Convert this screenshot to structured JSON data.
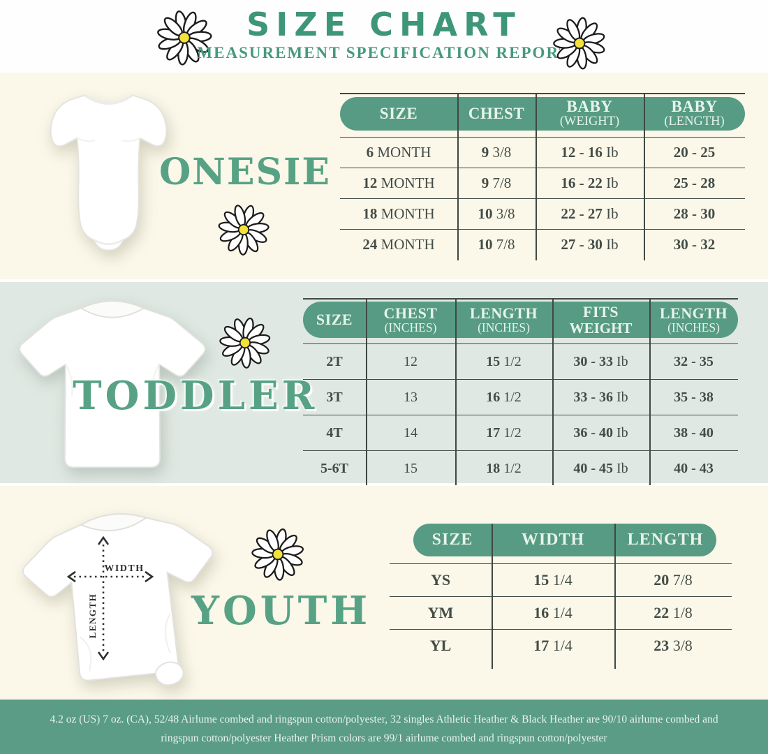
{
  "page": {
    "title": "SIZE CHART",
    "subtitle": "MEASUREMENT SPECIFICATION REPORT",
    "footer": "4.2 oz (US) 7 oz. (CA), 52/48 Airlume combed and ringspun cotton/polyester, 32 singles Athletic Heather & Black Heather are 90/10 airlume combed and ringspun cotton/polyester Heather Prism colors are 99/1 airlume combed and ringspun cotton/polyester"
  },
  "colors": {
    "band_green": "#579b84",
    "hero_title_green": "#3e9679",
    "section_title_green": "#57a285",
    "footer_green": "#5a9c85",
    "text_dark": "#434d47",
    "cream_bg": "#fbf7e9",
    "mint_bg": "#dfe8e2",
    "header_text": "#e7f4ea",
    "daisy_center": "#f2e23a"
  },
  "sections": {
    "onesie": {
      "title": "ONESIE"
    },
    "toddler": {
      "title": "TODDLER"
    },
    "youth": {
      "title": "YOUTH"
    }
  },
  "measure": {
    "width": "WIDTH",
    "length": "LENGTH"
  },
  "tables": {
    "onesie": {
      "headers": [
        {
          "l1": "SIZE"
        },
        {
          "l1": "CHEST"
        },
        {
          "l1": "BABY",
          "l2": "(WEIGHT)"
        },
        {
          "l1": "BABY",
          "l2": "(LENGTH)"
        }
      ],
      "rows": [
        [
          {
            "s": "6",
            "n": "MONTH"
          },
          {
            "s": "9",
            "n": "3/8"
          },
          {
            "s": "12 - 16",
            "n": "Ib"
          },
          {
            "s": "20 - 25"
          }
        ],
        [
          {
            "s": "12",
            "n": "MONTH"
          },
          {
            "s": "9",
            "n": "7/8"
          },
          {
            "s": "16 - 22",
            "n": "Ib"
          },
          {
            "s": "25 - 28"
          }
        ],
        [
          {
            "s": "18",
            "n": "MONTH"
          },
          {
            "s": "10",
            "n": "3/8"
          },
          {
            "s": "22 - 27",
            "n": "Ib"
          },
          {
            "s": "28 - 30"
          }
        ],
        [
          {
            "s": "24",
            "n": "MONTH"
          },
          {
            "s": "10",
            "n": "7/8"
          },
          {
            "s": "27 - 30",
            "n": "Ib"
          },
          {
            "s": "30 - 32"
          }
        ]
      ]
    },
    "toddler": {
      "headers": [
        {
          "l1": "SIZE"
        },
        {
          "l1": "CHEST",
          "l2": "(INCHES)"
        },
        {
          "l1": "LENGTH",
          "l2": "(INCHES)"
        },
        {
          "l1": "FITS",
          "l2": "WEIGHT",
          "l2bold": true
        },
        {
          "l1": "LENGTH",
          "l2": "(INCHES)"
        }
      ],
      "rows": [
        [
          {
            "s": "2T"
          },
          {
            "n": "12"
          },
          {
            "s": "15",
            "n": "1/2"
          },
          {
            "s": "30 - 33",
            "n": "Ib"
          },
          {
            "s": "32 - 35"
          }
        ],
        [
          {
            "s": "3T"
          },
          {
            "n": "13"
          },
          {
            "s": "16",
            "n": "1/2"
          },
          {
            "s": "33 - 36",
            "n": "Ib"
          },
          {
            "s": "35 - 38"
          }
        ],
        [
          {
            "s": "4T"
          },
          {
            "n": "14"
          },
          {
            "s": "17",
            "n": "1/2"
          },
          {
            "s": "36 - 40",
            "n": "Ib"
          },
          {
            "s": "38 - 40"
          }
        ],
        [
          {
            "s": "5-6T"
          },
          {
            "n": "15"
          },
          {
            "s": "18",
            "n": "1/2"
          },
          {
            "s": "40 - 45",
            "n": "Ib"
          },
          {
            "s": "40 - 43"
          }
        ]
      ]
    },
    "youth": {
      "headers": [
        {
          "l1": "SIZE"
        },
        {
          "l1": "WIDTH"
        },
        {
          "l1": "LENGTH"
        }
      ],
      "rows": [
        [
          {
            "s": "YS"
          },
          {
            "s": "15",
            "n": "1/4"
          },
          {
            "s": "20",
            "n": "7/8"
          }
        ],
        [
          {
            "s": "YM"
          },
          {
            "s": "16",
            "n": "1/4"
          },
          {
            "s": "22",
            "n": "1/8"
          }
        ],
        [
          {
            "s": "YL"
          },
          {
            "s": "17",
            "n": "1/4"
          },
          {
            "s": "23",
            "n": "3/8"
          }
        ]
      ]
    }
  }
}
